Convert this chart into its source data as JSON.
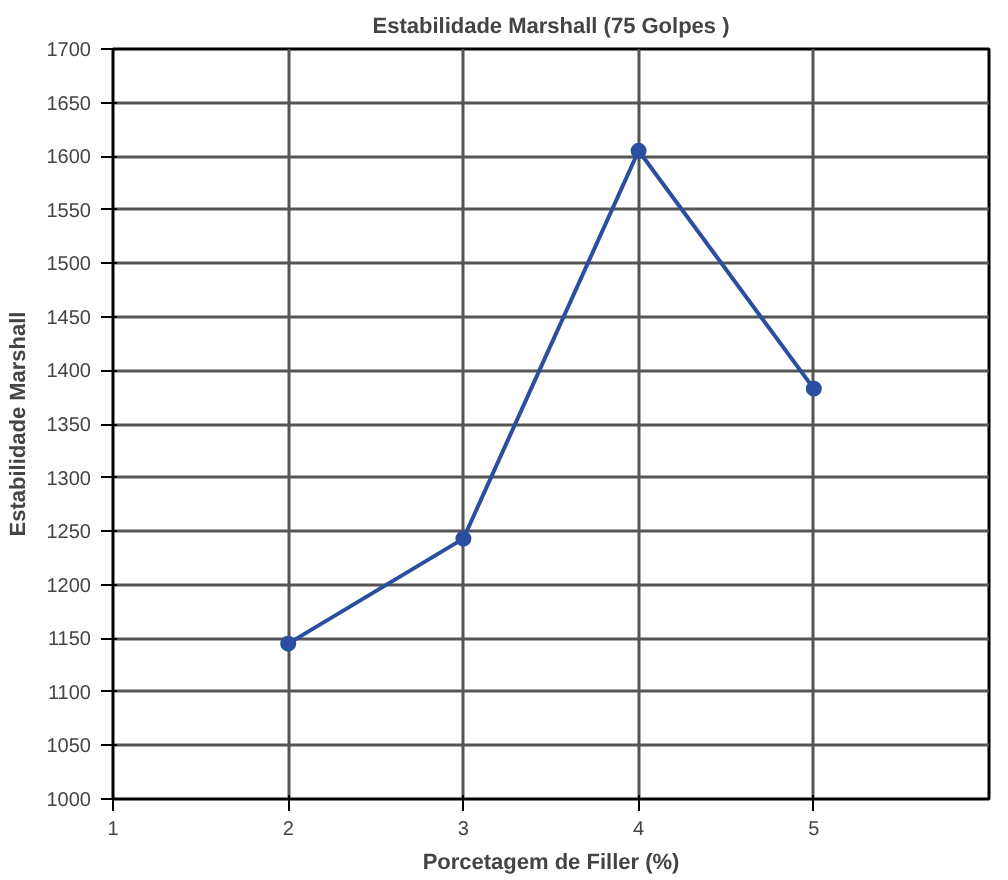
{
  "chart_data": {
    "type": "line",
    "title": "Estabilidade Marshall (75 Golpes )",
    "xlabel": "Porcetagem de Filler (%)",
    "ylabel": "Estabilidade Marshall",
    "x": [
      2,
      3,
      4,
      5
    ],
    "series": [
      {
        "color": "#2a4fa0",
        "values": [
          1145,
          1243,
          1605,
          1383
        ]
      }
    ],
    "xlim": [
      1,
      6
    ],
    "xticks": [
      1,
      2,
      3,
      4,
      5
    ],
    "ylim": [
      1000,
      1700
    ],
    "yticks": [
      1000,
      1050,
      1100,
      1150,
      1200,
      1250,
      1300,
      1350,
      1400,
      1450,
      1500,
      1550,
      1600,
      1650,
      1700
    ],
    "grid": true,
    "marker": "circle",
    "line_style": "solid"
  }
}
